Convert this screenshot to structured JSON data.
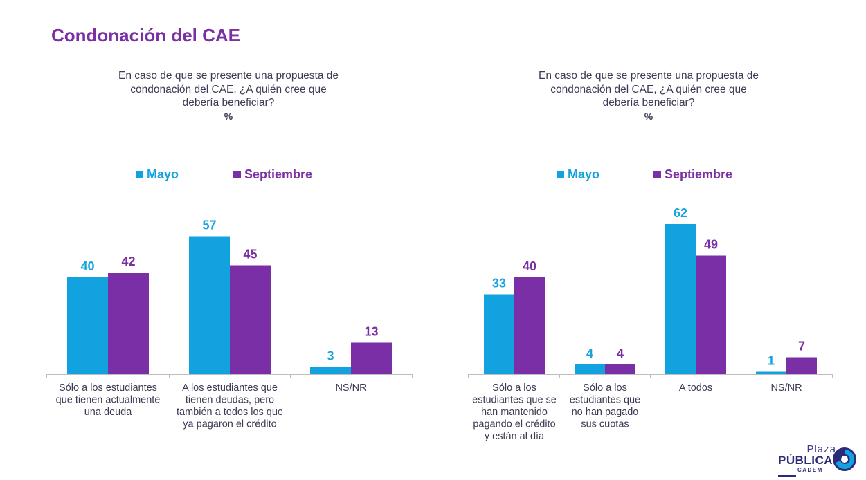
{
  "page": {
    "title": "Condonación del CAE"
  },
  "colors": {
    "mayo": "#12a2e0",
    "septiembre": "#7b2fa6",
    "title": "#7a2fa3",
    "label_mayo": "#17a3dd",
    "label_sep": "#7a2fa3"
  },
  "logo": {
    "top": "Plaza",
    "main": "PÚBLICA",
    "sub": "CADEM"
  },
  "chart_data": [
    {
      "type": "bar",
      "question_lines": [
        "En caso de que se presente una propuesta de",
        "condonación del CAE, ¿A quién cree que",
        "debería beneficiar?"
      ],
      "unit": "%",
      "legend": [
        "Mayo",
        "Septiembre"
      ],
      "categories": [
        [
          "Sólo a los estudiantes",
          "que tienen actualmente",
          "una deuda"
        ],
        [
          "A los estudiantes que",
          "tienen deudas, pero",
          "también a todos los que",
          "ya pagaron el crédito"
        ],
        [
          "NS/NR"
        ]
      ],
      "series": [
        {
          "name": "Mayo",
          "values": [
            40,
            57,
            3
          ]
        },
        {
          "name": "Septiembre",
          "values": [
            42,
            45,
            13
          ]
        }
      ]
    },
    {
      "type": "bar",
      "question_lines": [
        "En caso de que se presente una propuesta de",
        "condonación del CAE, ¿A quién cree que",
        "debería beneficiar?"
      ],
      "unit": "%",
      "legend": [
        "Mayo",
        "Septiembre"
      ],
      "categories": [
        [
          "Sólo a los",
          "estudiantes que se",
          "han mantenido",
          "pagando el crédito",
          "y están al día"
        ],
        [
          "Sólo a los",
          "estudiantes que",
          "no han pagado",
          "sus cuotas"
        ],
        [
          "A todos"
        ],
        [
          "NS/NR"
        ]
      ],
      "series": [
        {
          "name": "Mayo",
          "values": [
            33,
            4,
            62,
            1
          ]
        },
        {
          "name": "Septiembre",
          "values": [
            40,
            4,
            49,
            7
          ]
        }
      ]
    }
  ]
}
